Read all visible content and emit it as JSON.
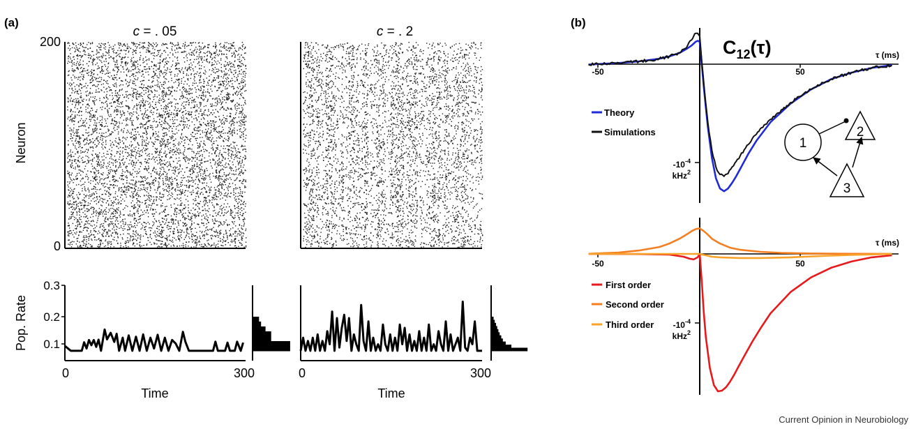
{
  "panels": {
    "a": "(a)",
    "b": "(b)"
  },
  "credit": "Current Opinion in Neurobiology",
  "chart_data": [
    {
      "id": "raster-c05",
      "type": "scatter",
      "subtype": "spike-raster",
      "title_italic": "c",
      "title_rest": " = . 05",
      "ylabel": "Neuron",
      "ylim": [
        0,
        200
      ],
      "xlim": [
        0,
        300
      ],
      "yticks": [
        "200",
        "0"
      ],
      "n_neurons": 200,
      "spike_density": 0.16,
      "seed": 11
    },
    {
      "id": "raster-c2",
      "type": "scatter",
      "subtype": "spike-raster",
      "title_italic": "c",
      "title_rest": " = . 2",
      "ylim": [
        0,
        200
      ],
      "xlim": [
        0,
        300
      ],
      "n_neurons": 200,
      "spike_density": 0.16,
      "seed": 29
    },
    {
      "id": "rate-c05",
      "type": "line",
      "ylabel": "Pop. Rate",
      "xlabel": "Time",
      "xlim": [
        0,
        300
      ],
      "ylim": [
        0.07,
        0.3
      ],
      "yticks": [
        "0.3",
        "0.2",
        "0.1"
      ],
      "xticks": [
        "0",
        "300"
      ],
      "x": [
        0,
        10,
        20,
        28,
        32,
        36,
        40,
        44,
        48,
        52,
        56,
        60,
        66,
        70,
        76,
        82,
        86,
        90,
        96,
        100,
        106,
        112,
        118,
        124,
        130,
        136,
        142,
        148,
        154,
        160,
        166,
        172,
        178,
        184,
        190,
        196,
        200,
        206,
        212,
        218,
        224,
        230,
        236,
        246,
        250,
        254,
        258,
        266,
        270,
        274,
        278,
        282,
        286,
        292,
        296
      ],
      "y": [
        0.115,
        0.1,
        0.1,
        0.1,
        0.126,
        0.107,
        0.133,
        0.117,
        0.133,
        0.112,
        0.134,
        0.1,
        0.165,
        0.135,
        0.155,
        0.127,
        0.152,
        0.1,
        0.14,
        0.1,
        0.147,
        0.1,
        0.143,
        0.1,
        0.15,
        0.1,
        0.14,
        0.107,
        0.149,
        0.1,
        0.14,
        0.1,
        0.133,
        0.122,
        0.1,
        0.158,
        0.128,
        0.1,
        0.1,
        0.1,
        0.1,
        0.1,
        0.1,
        0.1,
        0.128,
        0.1,
        0.1,
        0.1,
        0.125,
        0.1,
        0.1,
        0.1,
        0.128,
        0.1,
        0.125
      ],
      "histogram": [
        0.16,
        0.21,
        0.32,
        0.46,
        0.46,
        0.93,
        0.93
      ]
    },
    {
      "id": "rate-c2",
      "type": "line",
      "xlabel": "Time",
      "xlim": [
        0,
        300
      ],
      "ylim": [
        0.07,
        0.3
      ],
      "xticks": [
        "0",
        "300"
      ],
      "x": [
        0,
        4,
        8,
        12,
        16,
        20,
        24,
        28,
        32,
        36,
        40,
        44,
        48,
        52,
        56,
        60,
        64,
        68,
        72,
        76,
        80,
        84,
        88,
        92,
        96,
        100,
        104,
        108,
        112,
        116,
        120,
        124,
        128,
        132,
        136,
        140,
        144,
        148,
        152,
        156,
        160,
        164,
        168,
        172,
        176,
        180,
        184,
        188,
        192,
        196,
        200,
        204,
        208,
        212,
        216,
        220,
        224,
        228,
        232,
        236,
        240,
        244,
        248,
        252,
        256,
        260,
        264,
        268,
        272,
        276,
        280,
        284,
        288,
        292,
        296,
        300
      ],
      "y": [
        0.1,
        0.14,
        0.1,
        0.13,
        0.1,
        0.14,
        0.1,
        0.15,
        0.1,
        0.13,
        0.1,
        0.16,
        0.12,
        0.22,
        0.1,
        0.2,
        0.11,
        0.17,
        0.21,
        0.13,
        0.2,
        0.1,
        0.15,
        0.12,
        0.1,
        0.24,
        0.13,
        0.1,
        0.19,
        0.1,
        0.14,
        0.1,
        0.12,
        0.1,
        0.18,
        0.12,
        0.1,
        0.15,
        0.1,
        0.14,
        0.1,
        0.18,
        0.12,
        0.17,
        0.1,
        0.15,
        0.1,
        0.13,
        0.1,
        0.16,
        0.1,
        0.14,
        0.1,
        0.18,
        0.1,
        0.12,
        0.1,
        0.16,
        0.12,
        0.1,
        0.19,
        0.1,
        0.15,
        0.1,
        0.12,
        0.14,
        0.1,
        0.25,
        0.11,
        0.1,
        0.14,
        0.12,
        0.19,
        0.1,
        0.1,
        0.1
      ],
      "histogram": [
        0.06,
        0.09,
        0.12,
        0.15,
        0.18,
        0.21,
        0.25,
        0.29,
        0.36,
        0.5,
        0.9
      ]
    },
    {
      "id": "c12-theory",
      "type": "line",
      "title_main": "C",
      "title_sub": "12",
      "title_arg": "(τ)",
      "xlabel": "τ (ms)",
      "xlim": [
        -55,
        95
      ],
      "xticks": [
        "-50",
        "50"
      ],
      "ylabel_line1": "-10",
      "ylabel_sup1": "-4",
      "ylabel_line2": "kHz",
      "ylabel_sup2": "2",
      "ytick_value": -1,
      "series": [
        {
          "name": "Theory",
          "color": "#1f2bd6",
          "x": [
            -55,
            -40,
            -30,
            -20,
            -15,
            -10,
            -6,
            -4,
            -3,
            -2,
            -1,
            0,
            1,
            2,
            3,
            4,
            6,
            8,
            10,
            12,
            14,
            16,
            18,
            20,
            24,
            28,
            35,
            45,
            55,
            65,
            75,
            85,
            95
          ],
          "y": [
            -0.004,
            0.013,
            0.03,
            0.058,
            0.083,
            0.12,
            0.17,
            0.2,
            0.22,
            0.24,
            0.25,
            0.24,
            0.0,
            -0.24,
            -0.46,
            -0.67,
            -1.0,
            -1.22,
            -1.33,
            -1.36,
            -1.33,
            -1.27,
            -1.2,
            -1.12,
            -0.96,
            -0.82,
            -0.62,
            -0.42,
            -0.27,
            -0.16,
            -0.09,
            -0.04,
            -0.01
          ]
        },
        {
          "name": "Simulations",
          "color": "#111111",
          "x": [
            -55,
            -40,
            -30,
            -20,
            -15,
            -10,
            -6,
            -4,
            -3,
            -2,
            -1,
            0,
            1,
            2,
            3,
            4,
            6,
            8,
            10,
            12,
            14,
            16,
            18,
            20,
            24,
            28,
            35,
            45,
            55,
            65,
            75,
            85,
            95
          ],
          "y": [
            -0.004,
            0.013,
            0.03,
            0.058,
            0.083,
            0.12,
            0.2,
            0.26,
            0.3,
            0.33,
            0.33,
            0.3,
            0.03,
            -0.2,
            -0.42,
            -0.62,
            -0.92,
            -1.1,
            -1.18,
            -1.2,
            -1.17,
            -1.1,
            -1.04,
            -0.98,
            -0.86,
            -0.75,
            -0.59,
            -0.41,
            -0.27,
            -0.16,
            -0.09,
            -0.04,
            -0.01
          ],
          "noise": 0.015
        }
      ],
      "network": {
        "neuron_1": "1",
        "neuron_2": "2",
        "neuron_3": "3"
      }
    },
    {
      "id": "c12-orders",
      "type": "line",
      "xlabel": "τ (ms)",
      "xlim": [
        -55,
        95
      ],
      "xticks": [
        "-50",
        "50"
      ],
      "ylabel_line1": "-10",
      "ylabel_sup1": "-4",
      "ylabel_line2": "kHz",
      "ylabel_sup2": "2",
      "ytick_value": -1,
      "series": [
        {
          "name": "First order",
          "color": "#e8191b",
          "x": [
            -55,
            -30,
            -15,
            -8,
            -5,
            -3,
            -1,
            0,
            1,
            2,
            3,
            5,
            7,
            9,
            11,
            13,
            15,
            17,
            19,
            22,
            26,
            30,
            35,
            45,
            55,
            65,
            75,
            85,
            95
          ],
          "y": [
            0,
            -0.002,
            -0.01,
            -0.04,
            -0.07,
            -0.08,
            -0.05,
            0,
            -0.4,
            -0.85,
            -1.2,
            -1.65,
            -1.9,
            -1.99,
            -1.98,
            -1.93,
            -1.85,
            -1.75,
            -1.64,
            -1.48,
            -1.27,
            -1.08,
            -0.86,
            -0.55,
            -0.34,
            -0.2,
            -0.11,
            -0.05,
            -0.02
          ]
        },
        {
          "name": "Second order",
          "color": "#f57f20",
          "x": [
            -55,
            -40,
            -30,
            -20,
            -15,
            -10,
            -6,
            -4,
            -2,
            0,
            2,
            4,
            6,
            10,
            15,
            20,
            30,
            40,
            55,
            75,
            95
          ],
          "y": [
            0.002,
            0.02,
            0.05,
            0.1,
            0.15,
            0.22,
            0.29,
            0.33,
            0.36,
            0.37,
            0.33,
            0.28,
            0.22,
            0.15,
            0.09,
            0.06,
            0.03,
            0.015,
            0.006,
            0.002,
            0
          ]
        },
        {
          "name": "Third order",
          "color": "#f8a22a",
          "x": [
            -55,
            -20,
            -10,
            -5,
            0,
            3,
            6,
            10,
            20,
            30,
            45,
            60,
            75,
            95
          ],
          "y": [
            0,
            0,
            0,
            0,
            0,
            -0.02,
            -0.04,
            -0.05,
            -0.06,
            -0.06,
            -0.05,
            -0.03,
            -0.015,
            0
          ]
        }
      ]
    }
  ]
}
